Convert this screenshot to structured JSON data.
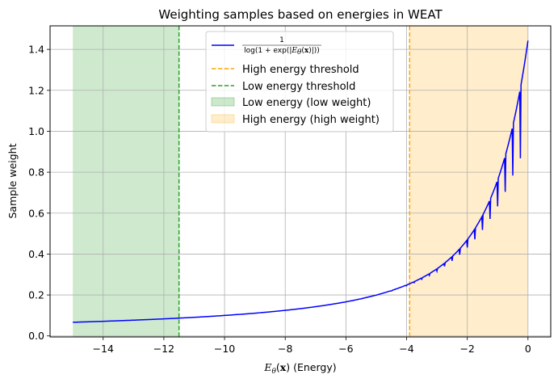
{
  "chart_data": {
    "type": "line",
    "title": "Weighting samples based on energies in WEAT",
    "xlabel_math": "E",
    "xlabel_sub": "θ",
    "xlabel_paren_open": "(",
    "xlabel_bold": "x",
    "xlabel_paren_close": ")",
    "xlabel_suffix": " (Energy)",
    "ylabel": "Sample weight",
    "xlim": [
      -15.75,
      0.75
    ],
    "ylim": [
      -0.005,
      1.515
    ],
    "xticks": [
      -14,
      -12,
      -10,
      -8,
      -6,
      -4,
      -2,
      0
    ],
    "xtick_labels": [
      "−14",
      "−12",
      "−10",
      "−8",
      "−6",
      "−4",
      "−2",
      "0"
    ],
    "yticks": [
      0.0,
      0.2,
      0.4,
      0.6,
      0.8,
      1.0,
      1.2,
      1.4
    ],
    "ytick_labels": [
      "0.0",
      "0.2",
      "0.4",
      "0.6",
      "0.8",
      "1.0",
      "1.2",
      "1.4"
    ],
    "grid": true,
    "legend_position": "upper-center",
    "curve_x": [
      -15,
      -14.5,
      -14,
      -13.5,
      -13,
      -12.5,
      -12,
      -11.5,
      -11,
      -10.5,
      -10,
      -9.5,
      -9,
      -8.5,
      -8,
      -7.5,
      -7,
      -6.5,
      -6,
      -5.5,
      -5,
      -4.5,
      -4,
      -3.75,
      -3.5,
      -3.25,
      -3,
      -2.75,
      -2.5,
      -2.25,
      -2,
      -1.75,
      -1.5,
      -1.25,
      -1,
      -0.75,
      -0.5,
      -0.25,
      0
    ],
    "curve_y": [
      0.0667,
      0.069,
      0.0714,
      0.0741,
      0.0769,
      0.08,
      0.0833,
      0.087,
      0.0909,
      0.0952,
      0.1,
      0.1053,
      0.1111,
      0.1176,
      0.125,
      0.1333,
      0.1429,
      0.1538,
      0.1663,
      0.1811,
      0.1987,
      0.2197,
      0.2455,
      0.2605,
      0.2771,
      0.2957,
      0.3166,
      0.3402,
      0.3668,
      0.3971,
      0.4318,
      0.4717,
      0.5179,
      0.5714,
      0.6333,
      0.7042,
      0.7835,
      0.8682,
      1.4427
    ],
    "high_threshold": -3.9,
    "low_threshold": -11.5,
    "low_region": [
      -15,
      -11.5
    ],
    "high_region": [
      -3.9,
      0
    ],
    "colors": {
      "curve": "#0000ff",
      "high": "#ffa500",
      "low": "#2ca02c",
      "grid": "#b0b0b0"
    },
    "legend": {
      "curve_num": "1",
      "curve_den_pre": "log(1 + exp(|",
      "curve_den_E": "E",
      "curve_den_sub": "θ",
      "curve_den_open": "(",
      "curve_den_x": "x",
      "curve_den_post": ")|))",
      "high_threshold": "High energy threshold",
      "low_threshold": "Low energy threshold",
      "low_region": "Low energy (low weight)",
      "high_region": "High energy (high weight)"
    }
  }
}
